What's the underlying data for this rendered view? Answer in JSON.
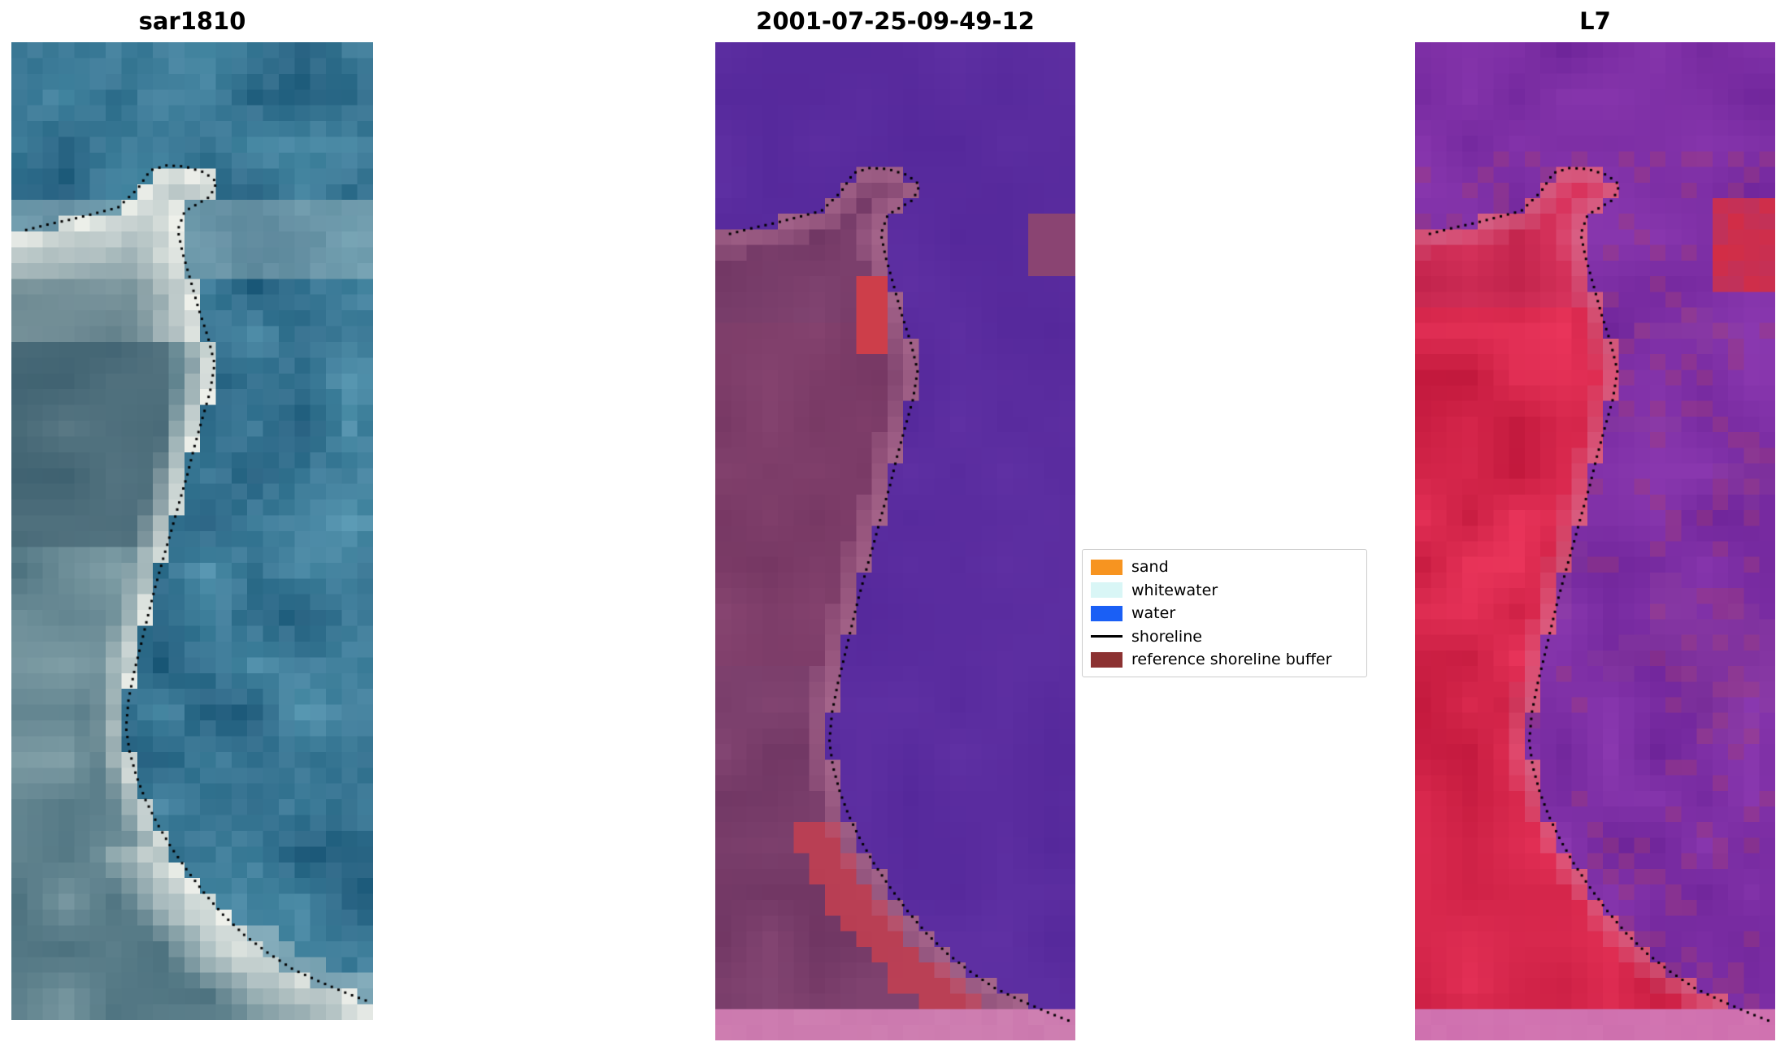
{
  "figure": {
    "background": "#ffffff",
    "panels": [
      {
        "id": "sar",
        "title": "sar1810",
        "kind": "sar",
        "rows": 62,
        "seed": 11
      },
      {
        "id": "cls",
        "title": "2001-07-25-09-49-12",
        "kind": "classified",
        "rows": 64,
        "seed": 22
      },
      {
        "id": "l7",
        "title": "L7",
        "kind": "l7",
        "rows": 64,
        "seed": 33
      }
    ],
    "grid": {
      "cols": 23
    },
    "legend": {
      "entries": [
        {
          "label": "sand",
          "color": "#f79420",
          "type": "patch"
        },
        {
          "label": "whitewater",
          "color": "#d9f6f6",
          "type": "patch"
        },
        {
          "label": "water",
          "color": "#1a5ff5",
          "type": "patch"
        },
        {
          "label": "shoreline",
          "color": "#000000",
          "type": "line"
        },
        {
          "label": "reference shoreline buffer",
          "color": "#8c3232",
          "type": "patch"
        }
      ]
    },
    "render": {
      "colors": {
        "water_class": "#5a2c9f",
        "buffer_class": "#7a3e6b",
        "buffer_edge": "#b27094",
        "red_patch": "#cd3e4a",
        "red_band": "#c43f50",
        "maroon_patch": "#8a4472",
        "pink_strip": "#cb79ae",
        "l7_land": "#d52248",
        "l7_water": "#7c2ea4",
        "l7_edge": "#d67fa0",
        "l7_red_blob": "#d22d46",
        "l7_pink_strip": "#ce6fae",
        "sar_water": "#2a6a8c",
        "sar_land": "#6f93a2",
        "sar_white": "#eef0ea",
        "shoreline_dots": "#000000"
      }
    },
    "shoreline": [
      [
        0.041,
        0.192
      ],
      [
        0.105,
        0.186
      ],
      [
        0.168,
        0.181
      ],
      [
        0.232,
        0.175
      ],
      [
        0.295,
        0.169
      ],
      [
        0.349,
        0.15
      ],
      [
        0.384,
        0.131
      ],
      [
        0.429,
        0.126
      ],
      [
        0.479,
        0.127
      ],
      [
        0.533,
        0.133
      ],
      [
        0.568,
        0.143
      ],
      [
        0.549,
        0.158
      ],
      [
        0.479,
        0.173
      ],
      [
        0.46,
        0.192
      ],
      [
        0.473,
        0.215
      ],
      [
        0.495,
        0.243
      ],
      [
        0.517,
        0.272
      ],
      [
        0.543,
        0.301
      ],
      [
        0.562,
        0.329
      ],
      [
        0.549,
        0.358
      ],
      [
        0.527,
        0.386
      ],
      [
        0.505,
        0.415
      ],
      [
        0.486,
        0.443
      ],
      [
        0.463,
        0.472
      ],
      [
        0.441,
        0.501
      ],
      [
        0.419,
        0.529
      ],
      [
        0.397,
        0.558
      ],
      [
        0.378,
        0.586
      ],
      [
        0.359,
        0.615
      ],
      [
        0.34,
        0.643
      ],
      [
        0.324,
        0.672
      ],
      [
        0.317,
        0.701
      ],
      [
        0.327,
        0.726
      ],
      [
        0.346,
        0.751
      ],
      [
        0.371,
        0.775
      ],
      [
        0.403,
        0.799
      ],
      [
        0.441,
        0.823
      ],
      [
        0.486,
        0.847
      ],
      [
        0.533,
        0.87
      ],
      [
        0.587,
        0.893
      ],
      [
        0.644,
        0.913
      ],
      [
        0.708,
        0.931
      ],
      [
        0.778,
        0.948
      ],
      [
        0.854,
        0.961
      ],
      [
        0.93,
        0.973
      ],
      [
        0.994,
        0.982
      ]
    ]
  },
  "chart_data": [
    {
      "type": "heatmap",
      "title": "sar1810",
      "description": "Pixelated SAR backscatter image (blue/teal speckle with bright white band along the coast); mapped shoreline overlaid as black dotted line."
    },
    {
      "type": "heatmap",
      "title": "2001-07-25-09-49-12",
      "description": "Image classification output: water class shown purple on the right, reference shoreline buffer (dark red/mauve) on the left, bright red patches near the shoreline, pink strip along the bottom edge; detected shoreline as black dotted line.",
      "legend_entries": [
        "sand",
        "whitewater",
        "water",
        "shoreline",
        "reference shoreline buffer"
      ],
      "legend_colors": [
        "#f79420",
        "#d9f6f6",
        "#1a5ff5",
        "#000000",
        "#8c3232"
      ]
    },
    {
      "type": "heatmap",
      "title": "L7",
      "description": "Landsat 7 false-colour composite: crimson land on the left, purple water on the right, purple band across the top, red blob top-right, pink strip along the bottom; shoreline as black dotted line."
    }
  ]
}
